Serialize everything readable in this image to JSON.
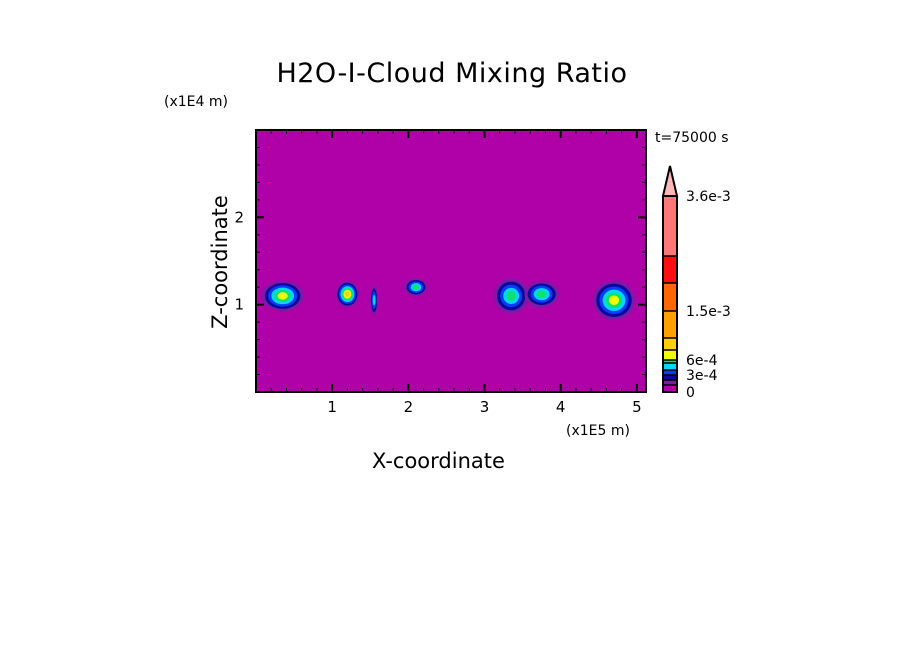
{
  "chart_data": {
    "type": "heatmap",
    "title": "H2O-I-Cloud Mixing Ratio",
    "xlabel": "X-coordinate",
    "ylabel": "Z-coordinate",
    "x_unit": "(x1E5 m)",
    "y_unit": "(x1E4 m)",
    "time_label": "t=75000 s",
    "xlim": [
      0,
      5.12
    ],
    "ylim": [
      0,
      3.0
    ],
    "x_ticks": [
      1,
      2,
      3,
      4,
      5
    ],
    "x_tick_labels": [
      "1",
      "2",
      "3",
      "4",
      "5"
    ],
    "y_ticks": [
      1,
      2
    ],
    "y_tick_labels": [
      "1",
      "2"
    ],
    "background_color": "#b000a8",
    "colorbar": {
      "levels": [
        0,
        0.0001,
        0.0002,
        0.0003,
        0.0004,
        0.0005,
        0.0006,
        0.0009,
        0.0012,
        0.0015,
        0.0021,
        0.0027,
        0.0036
      ],
      "colors": [
        "#b000a8",
        "#7a1aa8",
        "#0a0a9a",
        "#0a3aff",
        "#00d8ff",
        "#10e070",
        "#f0ff00",
        "#ffd000",
        "#ffa000",
        "#ff6800",
        "#ff1010",
        "#ff7878"
      ],
      "extend_color": "#ffb8b8",
      "labels": [
        {
          "value": 0,
          "text": "0"
        },
        {
          "value": 0.0003,
          "text": "3e-4"
        },
        {
          "value": 0.0006,
          "text": "6e-4"
        },
        {
          "value": 0.0015,
          "text": "1.5e-3"
        },
        {
          "value": 0.0036,
          "text": "3.6e-3"
        }
      ]
    },
    "cloud_features": [
      {
        "x": 0.35,
        "z": 1.1,
        "width": 0.55,
        "height": 0.35,
        "peak_level": 6
      },
      {
        "x": 1.2,
        "z": 1.12,
        "width": 0.3,
        "height": 0.3,
        "peak_level": 7
      },
      {
        "x": 1.55,
        "z": 1.05,
        "width": 0.1,
        "height": 0.35,
        "peak_level": 4
      },
      {
        "x": 2.1,
        "z": 1.2,
        "width": 0.3,
        "height": 0.2,
        "peak_level": 5
      },
      {
        "x": 3.35,
        "z": 1.1,
        "width": 0.45,
        "height": 0.4,
        "peak_level": 5
      },
      {
        "x": 3.75,
        "z": 1.12,
        "width": 0.45,
        "height": 0.3,
        "peak_level": 5
      },
      {
        "x": 4.7,
        "z": 1.05,
        "width": 0.55,
        "height": 0.45,
        "peak_level": 6
      }
    ]
  }
}
